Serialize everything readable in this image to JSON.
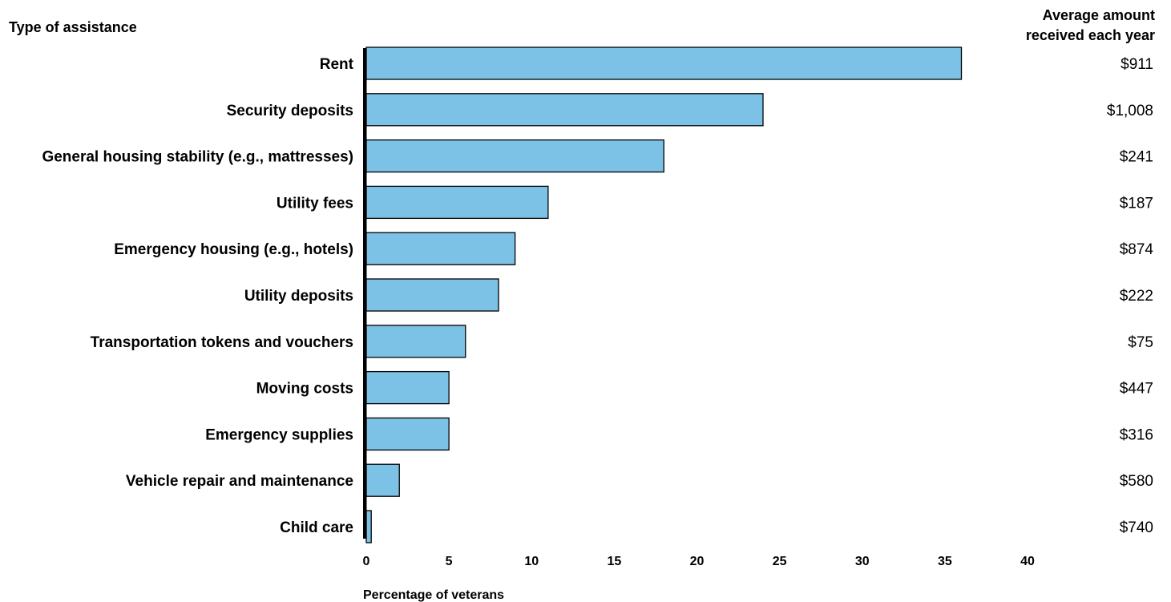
{
  "chart_data": {
    "type": "bar",
    "orientation": "horizontal",
    "category_header": "Type of assistance",
    "amount_header": [
      "Average amount",
      "received each year"
    ],
    "xlabel": "Percentage of veterans",
    "xlim": [
      0,
      40
    ],
    "xticks": [
      "0",
      "5",
      "10",
      "15",
      "20",
      "25",
      "30",
      "35",
      "40"
    ],
    "bar_color": "#7cc1e6",
    "bar_edge_color": "#000000",
    "categories": [
      "Rent",
      "Security deposits",
      "General housing stability (e.g., mattresses)",
      "Utility fees",
      "Emergency housing (e.g., hotels)",
      "Utility deposits",
      "Transportation tokens and vouchers",
      "Moving costs",
      "Emergency supplies",
      "Vehicle repair and maintenance",
      "Child care"
    ],
    "values": [
      36,
      24,
      18,
      11,
      9,
      8,
      6,
      5,
      5,
      2,
      0.3
    ],
    "amounts": [
      "$911",
      "$1,008",
      "$241",
      "$187",
      "$874",
      "$222",
      "$75",
      "$447",
      "$316",
      "$580",
      "$740"
    ]
  }
}
